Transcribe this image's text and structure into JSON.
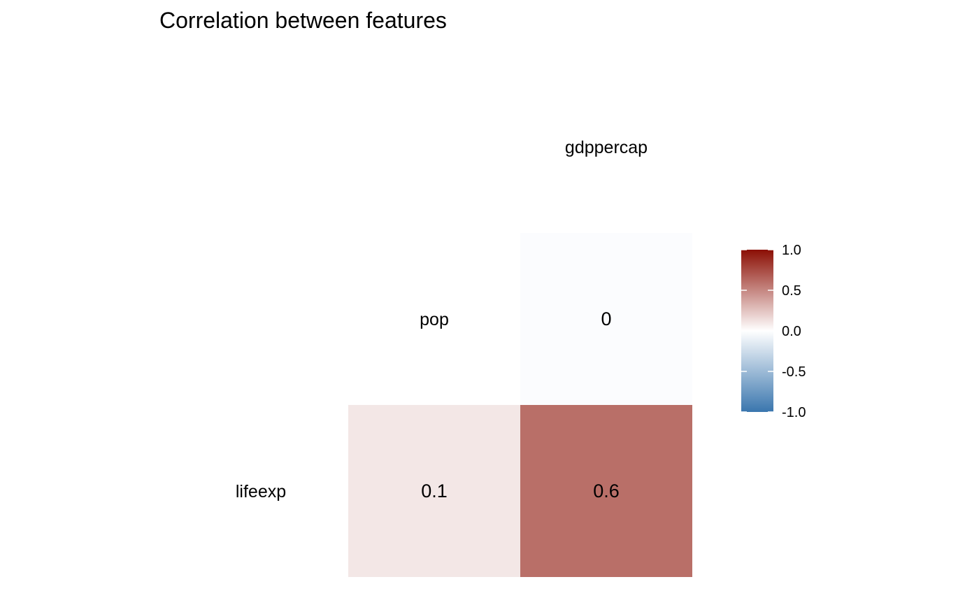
{
  "chart_data": {
    "type": "heatmap",
    "title": "Correlation between features",
    "variables": [
      "lifeexp",
      "pop",
      "gdppercap"
    ],
    "cells": [
      {
        "row": "pop",
        "col": "gdppercap",
        "value": 0,
        "label": "0"
      },
      {
        "row": "lifeexp",
        "col": "pop",
        "value": 0.1,
        "label": "0.1"
      },
      {
        "row": "lifeexp",
        "col": "gdppercap",
        "value": 0.6,
        "label": "0.6"
      }
    ],
    "diagonal_labels": [
      {
        "row": "pop",
        "col": "pop",
        "label": "pop"
      },
      {
        "row": "gdppercap",
        "col": "gdppercap",
        "label": "gdppercap"
      }
    ],
    "row_labels": [
      {
        "row": "lifeexp",
        "label": "lifeexp"
      }
    ],
    "legend": {
      "placement": "right",
      "range": [
        -1,
        1
      ],
      "ticks": [
        1,
        0.5,
        0,
        -0.5,
        -1
      ],
      "tick_labels": [
        "1.0",
        "0.5",
        "0.0",
        "-0.5",
        "-1.0"
      ]
    },
    "colors": {
      "low": "#3a76ae",
      "mid": "#ffffff",
      "high": "#8b0f04"
    }
  }
}
